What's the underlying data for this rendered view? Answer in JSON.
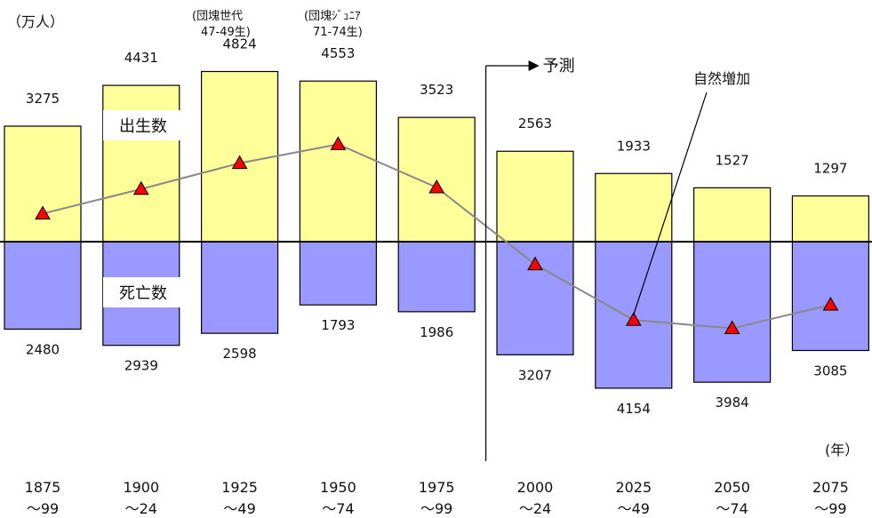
{
  "chart_data": {
    "type": "bar",
    "unit_label": "（万人）",
    "x_unit_label": "(年）",
    "categories": [
      [
        "1875",
        "～99"
      ],
      [
        "1900",
        "～24"
      ],
      [
        "1925",
        "～49"
      ],
      [
        "1950",
        "～74"
      ],
      [
        "1975",
        "～99"
      ],
      [
        "2000",
        "～24"
      ],
      [
        "2025",
        "～49"
      ],
      [
        "2050",
        "～74"
      ],
      [
        "2075",
        "～99"
      ]
    ],
    "series": [
      {
        "name": "出生数",
        "values": [
          3275,
          4431,
          4824,
          4553,
          3523,
          2563,
          1933,
          1527,
          1297
        ],
        "color": "#ffff99"
      },
      {
        "name": "死亡数",
        "values": [
          2480,
          2939,
          2598,
          1793,
          1986,
          3207,
          4154,
          3984,
          3085
        ],
        "color": "#9999ff"
      },
      {
        "name": "自然増加",
        "values": [
          795,
          1492,
          2226,
          2760,
          1537,
          -644,
          -2221,
          -2457,
          -1788
        ],
        "marker_color": "#ff0000",
        "line_color": "#888888"
      }
    ],
    "forecast_start_index": 5,
    "annotations": {
      "forecast": "予測",
      "natural_increase": "自然増加",
      "baby_boom": [
        "(団塊世代",
        "47-49生)"
      ],
      "baby_boom_junior": [
        "(団塊ｼﾞｭﾆｱ",
        "71-74生)"
      ]
    },
    "ylim": [
      -4800,
      5200
    ],
    "xlabel": "",
    "ylabel": "",
    "title": ""
  }
}
